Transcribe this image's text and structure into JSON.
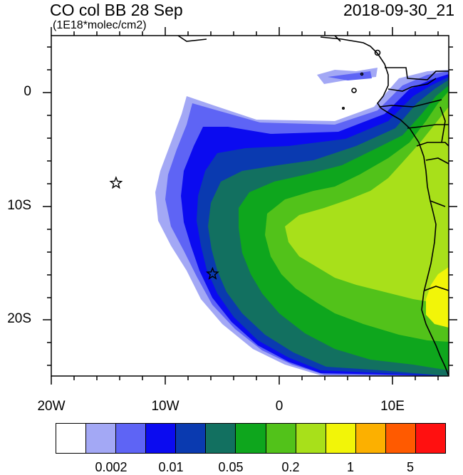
{
  "header": {
    "title_left": "CO col BB 28 Sep",
    "title_right": "2018-09-30_21",
    "subtitle": "(1E18*molec/cm2)"
  },
  "axes": {
    "lon_labels": [
      "20W",
      "10W",
      "0",
      "10E"
    ],
    "lat_labels": [
      "0",
      "10S",
      "20S"
    ],
    "lon_range": [
      -20,
      15
    ],
    "lat_range": [
      -25,
      5
    ]
  },
  "markers": [
    {
      "name": "star-marker",
      "lon": -14.3,
      "lat": -8.0
    },
    {
      "name": "star-marker",
      "lon": -5.8,
      "lat": -16.0
    }
  ],
  "colorbar": {
    "colors": [
      "#ffffff",
      "#a3a8f5",
      "#5e64f5",
      "#0b0bf0",
      "#0a3ab0",
      "#127060",
      "#0ea61d",
      "#52c21a",
      "#a8e01a",
      "#f2f508",
      "#fcb000",
      "#ff5a00",
      "#ff1010"
    ],
    "labels": [
      "0.002",
      "0.01",
      "0.05",
      "0.2",
      "1",
      "5"
    ]
  }
}
